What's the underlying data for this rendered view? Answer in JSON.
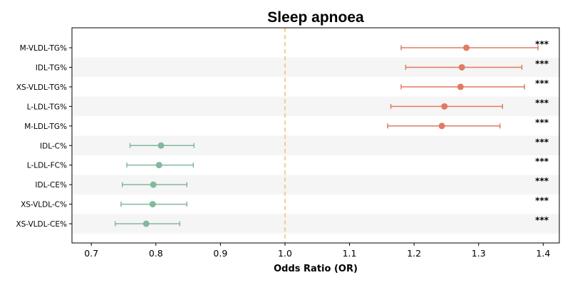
{
  "chart_data": {
    "type": "scatter",
    "subtype": "forest-plot",
    "title": "Sleep apnoea",
    "xlabel": "Odds Ratio (OR)",
    "ylabel": "",
    "xlim": [
      0.67,
      1.425
    ],
    "xticks": [
      0.7,
      0.8,
      0.9,
      1.0,
      1.1,
      1.2,
      1.3,
      1.4
    ],
    "xtick_labels": [
      "0.7",
      "0.8",
      "0.9",
      "1.0",
      "1.1",
      "1.2",
      "1.3",
      "1.4"
    ],
    "reference_line": 1.0,
    "grid": false,
    "alternating_row_bands": true,
    "colors": {
      "positive": "#e07b62",
      "negative": "#84b89c",
      "reference": "#f5c27a",
      "band": "#f5f5f5"
    },
    "rows": [
      {
        "label": "M-VLDL-TG%",
        "or": 1.281,
        "lower": 1.18,
        "upper": 1.392,
        "sig": "***",
        "direction": "positive"
      },
      {
        "label": "IDL-TG%",
        "or": 1.274,
        "lower": 1.187,
        "upper": 1.367,
        "sig": "***",
        "direction": "positive"
      },
      {
        "label": "XS-VLDL-TG%",
        "or": 1.272,
        "lower": 1.18,
        "upper": 1.371,
        "sig": "***",
        "direction": "positive"
      },
      {
        "label": "L-LDL-TG%",
        "or": 1.247,
        "lower": 1.164,
        "upper": 1.337,
        "sig": "***",
        "direction": "positive"
      },
      {
        "label": "M-LDL-TG%",
        "or": 1.243,
        "lower": 1.159,
        "upper": 1.333,
        "sig": "***",
        "direction": "positive"
      },
      {
        "label": "IDL-C%",
        "or": 0.808,
        "lower": 0.76,
        "upper": 0.859,
        "sig": "***",
        "direction": "negative"
      },
      {
        "label": "L-LDL-FC%",
        "or": 0.805,
        "lower": 0.755,
        "upper": 0.858,
        "sig": "***",
        "direction": "negative"
      },
      {
        "label": "IDL-CE%",
        "or": 0.796,
        "lower": 0.748,
        "upper": 0.848,
        "sig": "***",
        "direction": "negative"
      },
      {
        "label": "XS-VLDL-C%",
        "or": 0.795,
        "lower": 0.746,
        "upper": 0.848,
        "sig": "***",
        "direction": "negative"
      },
      {
        "label": "XS-VLDL-CE%",
        "or": 0.785,
        "lower": 0.737,
        "upper": 0.837,
        "sig": "***",
        "direction": "negative"
      }
    ]
  }
}
